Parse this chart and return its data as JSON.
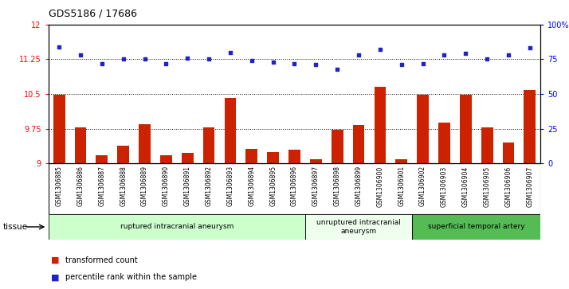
{
  "title": "GDS5186 / 17686",
  "samples": [
    "GSM1306885",
    "GSM1306886",
    "GSM1306887",
    "GSM1306888",
    "GSM1306889",
    "GSM1306890",
    "GSM1306891",
    "GSM1306892",
    "GSM1306893",
    "GSM1306894",
    "GSM1306895",
    "GSM1306896",
    "GSM1306897",
    "GSM1306898",
    "GSM1306899",
    "GSM1306900",
    "GSM1306901",
    "GSM1306902",
    "GSM1306903",
    "GSM1306904",
    "GSM1306905",
    "GSM1306906",
    "GSM1306907"
  ],
  "bar_values": [
    10.48,
    9.78,
    9.18,
    9.38,
    9.85,
    9.18,
    9.22,
    9.78,
    10.42,
    9.32,
    9.25,
    9.3,
    9.08,
    9.72,
    9.82,
    10.65,
    9.08,
    10.48,
    9.88,
    10.48,
    9.78,
    9.45,
    10.58
  ],
  "percentile_values": [
    84,
    78,
    72,
    75,
    75,
    72,
    76,
    75,
    80,
    74,
    73,
    72,
    71,
    68,
    78,
    82,
    71,
    72,
    78,
    79,
    75,
    78,
    83
  ],
  "bar_color": "#cc2200",
  "dot_color": "#2222cc",
  "ylim_left": [
    9,
    12
  ],
  "ylim_right": [
    0,
    100
  ],
  "yticks_left": [
    9,
    9.75,
    10.5,
    11.25,
    12
  ],
  "yticks_right": [
    0,
    25,
    50,
    75,
    100
  ],
  "hlines": [
    9.75,
    10.5,
    11.25
  ],
  "groups": [
    {
      "label": "ruptured intracranial aneurysm",
      "start": 0,
      "end": 12,
      "color": "#ccffcc"
    },
    {
      "label": "unruptured intracranial\naneurysm",
      "start": 12,
      "end": 17,
      "color": "#eeffee"
    },
    {
      "label": "superficial temporal artery",
      "start": 17,
      "end": 23,
      "color": "#55bb55"
    }
  ],
  "tissue_label": "tissue",
  "legend_bar_label": "transformed count",
  "legend_dot_label": "percentile rank within the sample",
  "plot_bg": "#ffffff",
  "xtick_bg": "#d8d8d8"
}
